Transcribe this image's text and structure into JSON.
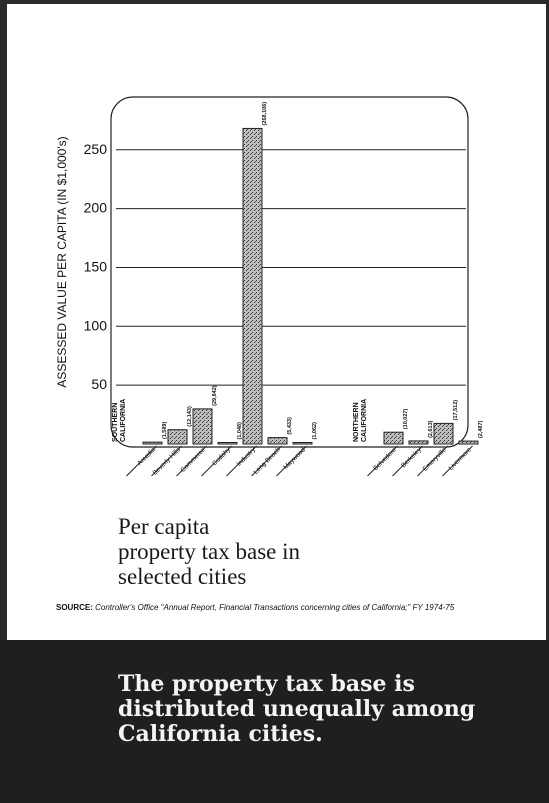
{
  "chart_data": {
    "type": "bar",
    "ylabel": "ASSESSED VALUE PER CAPITA (IN $1,000's)",
    "yticks": [
      50,
      100,
      150,
      200,
      250
    ],
    "ylim": [
      0,
      270
    ],
    "grid": true,
    "groups": [
      {
        "name": "SOUTHERN CALIFORNIA",
        "categories": [
          "Arcadia",
          "Beverly Hills",
          "Commerce",
          "Cudahy",
          "Industry",
          "Long Beach",
          "Maywood"
        ],
        "values": [
          1.589,
          12.143,
          29.842,
          1.048,
          268.106,
          5.433,
          1.062
        ],
        "value_labels": [
          "(1,589)",
          "(12,143)",
          "(29,842)",
          "(1,048)",
          "(268,106)",
          "(5,433)",
          "(1,062)"
        ]
      },
      {
        "name": "NORTHERN CALIFORNIA",
        "categories": [
          "Belvedere",
          "Berkeley",
          "Emeryville",
          "Livermore"
        ],
        "values": [
          10.027,
          2.613,
          17.512,
          2.487
        ],
        "value_labels": [
          "(10,027)",
          "(2,613)",
          "(17,512)",
          "(2,487)"
        ]
      }
    ]
  },
  "caption": {
    "line1": "Per capita",
    "line2": "property tax base in",
    "line3": "selected cities"
  },
  "source": {
    "label": "SOURCE:",
    "text": "Controller's Office \"Annual Report, Financial Transactions concerning cities of California;\" FY 1974-75"
  },
  "headline": {
    "line1": "The property tax base is",
    "line2": "distributed unequally among",
    "line3": "California cities."
  },
  "colors": {
    "bar_fill": "#9a9a9a",
    "bar_stroke": "#222222",
    "band": "#1f1f1f",
    "headline_text": "#f4f4f4"
  }
}
